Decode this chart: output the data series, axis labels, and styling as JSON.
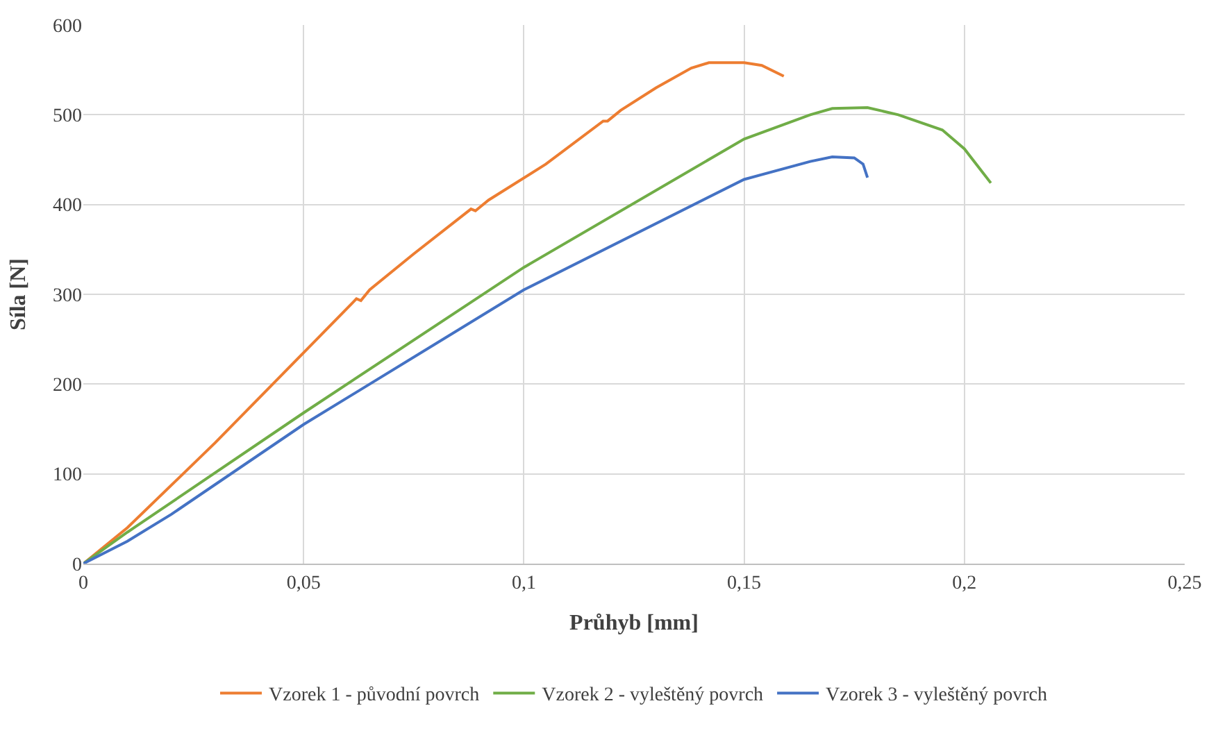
{
  "chart_data": {
    "type": "line",
    "xlabel": "Průhyb [mm]",
    "ylabel": "Síla [N]",
    "xlim": [
      0,
      0.25
    ],
    "xticks": [
      {
        "value": 0,
        "label": "0"
      },
      {
        "value": 0.05,
        "label": "0,05"
      },
      {
        "value": 0.1,
        "label": "0,1"
      },
      {
        "value": 0.15,
        "label": "0,15"
      },
      {
        "value": 0.2,
        "label": "0,2"
      },
      {
        "value": 0.25,
        "label": "0,25"
      }
    ],
    "ylim": [
      0,
      600
    ],
    "yticks": [
      0,
      100,
      200,
      300,
      400,
      500,
      600
    ],
    "grid": true,
    "legend": "bottom",
    "marker": "none",
    "line_style": "solid",
    "series": [
      {
        "name": "Vzorek 1 - původní povrch",
        "color": "#ed7d31",
        "x": [
          0,
          0.01,
          0.03,
          0.05,
          0.062,
          0.063,
          0.065,
          0.075,
          0.088,
          0.089,
          0.092,
          0.105,
          0.118,
          0.119,
          0.122,
          0.13,
          0.138,
          0.142,
          0.15,
          0.154,
          0.159
        ],
        "values": [
          0,
          40,
          135,
          235,
          295,
          293,
          305,
          345,
          395,
          393,
          405,
          445,
          493,
          493,
          505,
          530,
          552,
          558,
          558,
          555,
          543
        ]
      },
      {
        "name": "Vzorek 2 - vyleštěný povrch",
        "color": "#70ad47",
        "x": [
          0,
          0.01,
          0.05,
          0.1,
          0.15,
          0.165,
          0.17,
          0.178,
          0.185,
          0.195,
          0.2,
          0.206
        ],
        "values": [
          0,
          35,
          168,
          330,
          473,
          500,
          507,
          508,
          500,
          483,
          462,
          424
        ]
      },
      {
        "name": "Vzorek 3 - vyleštěný povrch",
        "color": "#4472c4",
        "x": [
          0,
          0.01,
          0.02,
          0.05,
          0.1,
          0.15,
          0.165,
          0.17,
          0.175,
          0.177,
          0.178
        ],
        "values": [
          0,
          25,
          55,
          155,
          305,
          428,
          448,
          453,
          452,
          445,
          430
        ]
      }
    ]
  }
}
